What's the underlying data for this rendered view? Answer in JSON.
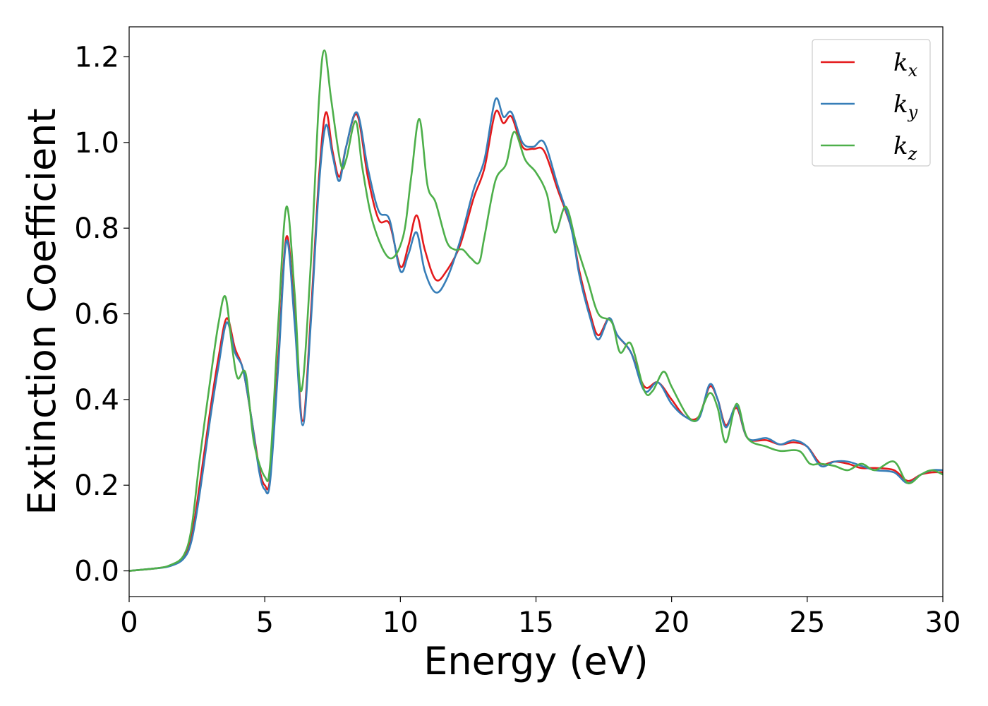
{
  "chart_data": {
    "type": "line",
    "title": "",
    "xlabel": "Energy (eV)",
    "ylabel": "Extinction Coefficient",
    "xlim": [
      0,
      30
    ],
    "ylim": [
      -0.06,
      1.27
    ],
    "xticks": [
      0,
      5,
      10,
      15,
      20,
      25,
      30
    ],
    "yticks": [
      0.0,
      0.2,
      0.4,
      0.6,
      0.8,
      1.0,
      1.2
    ],
    "xtick_labels": [
      "0",
      "5",
      "10",
      "15",
      "20",
      "25",
      "30"
    ],
    "ytick_labels": [
      "0.0",
      "0.2",
      "0.4",
      "0.6",
      "0.8",
      "1.0",
      "1.2"
    ],
    "grid": false,
    "legend_position": "top-right",
    "series": [
      {
        "name": "k_x",
        "label_base": "k",
        "label_sub": "x",
        "color": "#e41a1c",
        "points": [
          [
            0,
            0.0
          ],
          [
            1,
            0.006
          ],
          [
            1.5,
            0.012
          ],
          [
            2.0,
            0.03
          ],
          [
            2.3,
            0.08
          ],
          [
            2.6,
            0.2
          ],
          [
            3.0,
            0.38
          ],
          [
            3.3,
            0.5
          ],
          [
            3.6,
            0.59
          ],
          [
            3.9,
            0.52
          ],
          [
            4.2,
            0.47
          ],
          [
            4.5,
            0.36
          ],
          [
            4.8,
            0.24
          ],
          [
            5.0,
            0.2
          ],
          [
            5.2,
            0.22
          ],
          [
            5.5,
            0.5
          ],
          [
            5.8,
            0.78
          ],
          [
            6.1,
            0.6
          ],
          [
            6.4,
            0.35
          ],
          [
            6.7,
            0.6
          ],
          [
            7.0,
            0.92
          ],
          [
            7.25,
            1.07
          ],
          [
            7.5,
            0.98
          ],
          [
            7.75,
            0.92
          ],
          [
            8.0,
            0.99
          ],
          [
            8.4,
            1.065
          ],
          [
            8.8,
            0.92
          ],
          [
            9.2,
            0.82
          ],
          [
            9.6,
            0.81
          ],
          [
            10.0,
            0.71
          ],
          [
            10.3,
            0.76
          ],
          [
            10.6,
            0.83
          ],
          [
            10.9,
            0.75
          ],
          [
            11.3,
            0.68
          ],
          [
            11.7,
            0.7
          ],
          [
            12.2,
            0.76
          ],
          [
            12.7,
            0.87
          ],
          [
            13.1,
            0.94
          ],
          [
            13.5,
            1.07
          ],
          [
            13.8,
            1.045
          ],
          [
            14.1,
            1.06
          ],
          [
            14.5,
            0.99
          ],
          [
            14.9,
            0.985
          ],
          [
            15.3,
            0.98
          ],
          [
            15.8,
            0.89
          ],
          [
            16.3,
            0.8
          ],
          [
            16.6,
            0.7
          ],
          [
            17.0,
            0.6
          ],
          [
            17.3,
            0.55
          ],
          [
            17.7,
            0.59
          ],
          [
            18.0,
            0.55
          ],
          [
            18.5,
            0.51
          ],
          [
            19.0,
            0.43
          ],
          [
            19.5,
            0.44
          ],
          [
            20.0,
            0.4
          ],
          [
            20.5,
            0.36
          ],
          [
            21.0,
            0.36
          ],
          [
            21.4,
            0.43
          ],
          [
            21.7,
            0.4
          ],
          [
            22.0,
            0.34
          ],
          [
            22.4,
            0.38
          ],
          [
            22.8,
            0.31
          ],
          [
            23.5,
            0.305
          ],
          [
            24.0,
            0.295
          ],
          [
            24.5,
            0.3
          ],
          [
            25.0,
            0.29
          ],
          [
            25.5,
            0.25
          ],
          [
            26.0,
            0.255
          ],
          [
            26.5,
            0.25
          ],
          [
            27.0,
            0.24
          ],
          [
            27.5,
            0.24
          ],
          [
            28.2,
            0.235
          ],
          [
            28.7,
            0.21
          ],
          [
            29.2,
            0.225
          ],
          [
            29.6,
            0.23
          ],
          [
            30.0,
            0.23
          ]
        ]
      },
      {
        "name": "k_y",
        "label_base": "k",
        "label_sub": "y",
        "color": "#377eb8",
        "points": [
          [
            0,
            0.0
          ],
          [
            1,
            0.006
          ],
          [
            1.5,
            0.011
          ],
          [
            2.0,
            0.028
          ],
          [
            2.3,
            0.07
          ],
          [
            2.6,
            0.18
          ],
          [
            3.0,
            0.36
          ],
          [
            3.3,
            0.48
          ],
          [
            3.6,
            0.58
          ],
          [
            3.9,
            0.51
          ],
          [
            4.2,
            0.47
          ],
          [
            4.5,
            0.36
          ],
          [
            4.8,
            0.23
          ],
          [
            5.0,
            0.19
          ],
          [
            5.2,
            0.21
          ],
          [
            5.5,
            0.48
          ],
          [
            5.8,
            0.77
          ],
          [
            6.1,
            0.58
          ],
          [
            6.4,
            0.34
          ],
          [
            6.7,
            0.58
          ],
          [
            7.0,
            0.9
          ],
          [
            7.25,
            1.04
          ],
          [
            7.5,
            0.97
          ],
          [
            7.75,
            0.91
          ],
          [
            8.0,
            0.99
          ],
          [
            8.4,
            1.07
          ],
          [
            8.8,
            0.94
          ],
          [
            9.2,
            0.84
          ],
          [
            9.6,
            0.82
          ],
          [
            10.0,
            0.7
          ],
          [
            10.3,
            0.74
          ],
          [
            10.6,
            0.79
          ],
          [
            10.9,
            0.7
          ],
          [
            11.3,
            0.65
          ],
          [
            11.7,
            0.68
          ],
          [
            12.2,
            0.77
          ],
          [
            12.7,
            0.89
          ],
          [
            13.1,
            0.96
          ],
          [
            13.5,
            1.1
          ],
          [
            13.8,
            1.06
          ],
          [
            14.1,
            1.07
          ],
          [
            14.5,
            1.0
          ],
          [
            14.9,
            0.99
          ],
          [
            15.3,
            1.0
          ],
          [
            15.8,
            0.9
          ],
          [
            16.3,
            0.8
          ],
          [
            16.6,
            0.69
          ],
          [
            17.0,
            0.59
          ],
          [
            17.3,
            0.54
          ],
          [
            17.7,
            0.59
          ],
          [
            18.0,
            0.55
          ],
          [
            18.5,
            0.51
          ],
          [
            19.0,
            0.42
          ],
          [
            19.5,
            0.44
          ],
          [
            20.0,
            0.39
          ],
          [
            20.5,
            0.36
          ],
          [
            21.0,
            0.355
          ],
          [
            21.4,
            0.435
          ],
          [
            21.7,
            0.4
          ],
          [
            22.0,
            0.335
          ],
          [
            22.4,
            0.385
          ],
          [
            22.8,
            0.31
          ],
          [
            23.5,
            0.31
          ],
          [
            24.0,
            0.295
          ],
          [
            24.5,
            0.305
          ],
          [
            25.0,
            0.29
          ],
          [
            25.5,
            0.245
          ],
          [
            26.0,
            0.255
          ],
          [
            26.5,
            0.255
          ],
          [
            27.0,
            0.245
          ],
          [
            27.5,
            0.235
          ],
          [
            28.2,
            0.23
          ],
          [
            28.7,
            0.205
          ],
          [
            29.2,
            0.225
          ],
          [
            29.6,
            0.235
          ],
          [
            30.0,
            0.235
          ]
        ]
      },
      {
        "name": "k_z",
        "label_base": "k",
        "label_sub": "z",
        "color": "#4daf4a",
        "points": [
          [
            0,
            0.0
          ],
          [
            1,
            0.006
          ],
          [
            1.5,
            0.013
          ],
          [
            2.0,
            0.035
          ],
          [
            2.3,
            0.1
          ],
          [
            2.6,
            0.26
          ],
          [
            3.0,
            0.45
          ],
          [
            3.3,
            0.58
          ],
          [
            3.55,
            0.64
          ],
          [
            3.8,
            0.52
          ],
          [
            4.0,
            0.45
          ],
          [
            4.3,
            0.46
          ],
          [
            4.6,
            0.3
          ],
          [
            5.0,
            0.22
          ],
          [
            5.2,
            0.25
          ],
          [
            5.5,
            0.58
          ],
          [
            5.8,
            0.85
          ],
          [
            6.1,
            0.65
          ],
          [
            6.35,
            0.42
          ],
          [
            6.7,
            0.72
          ],
          [
            7.0,
            1.1
          ],
          [
            7.2,
            1.215
          ],
          [
            7.45,
            1.1
          ],
          [
            7.8,
            0.95
          ],
          [
            8.0,
            0.96
          ],
          [
            8.35,
            1.05
          ],
          [
            8.6,
            0.94
          ],
          [
            9.0,
            0.81
          ],
          [
            9.6,
            0.73
          ],
          [
            10.1,
            0.78
          ],
          [
            10.4,
            0.92
          ],
          [
            10.7,
            1.055
          ],
          [
            11.0,
            0.9
          ],
          [
            11.3,
            0.86
          ],
          [
            11.7,
            0.77
          ],
          [
            12.0,
            0.75
          ],
          [
            12.3,
            0.75
          ],
          [
            12.6,
            0.73
          ],
          [
            12.9,
            0.72
          ],
          [
            13.1,
            0.78
          ],
          [
            13.5,
            0.91
          ],
          [
            13.9,
            0.95
          ],
          [
            14.2,
            1.025
          ],
          [
            14.6,
            0.96
          ],
          [
            15.0,
            0.93
          ],
          [
            15.4,
            0.88
          ],
          [
            15.7,
            0.79
          ],
          [
            16.1,
            0.85
          ],
          [
            16.5,
            0.76
          ],
          [
            16.9,
            0.68
          ],
          [
            17.3,
            0.6
          ],
          [
            17.8,
            0.58
          ],
          [
            18.1,
            0.51
          ],
          [
            18.5,
            0.53
          ],
          [
            19.0,
            0.42
          ],
          [
            19.3,
            0.42
          ],
          [
            19.7,
            0.465
          ],
          [
            20.0,
            0.43
          ],
          [
            20.5,
            0.37
          ],
          [
            20.8,
            0.35
          ],
          [
            21.0,
            0.36
          ],
          [
            21.4,
            0.415
          ],
          [
            21.7,
            0.38
          ],
          [
            22.0,
            0.3
          ],
          [
            22.4,
            0.39
          ],
          [
            22.8,
            0.31
          ],
          [
            23.5,
            0.29
          ],
          [
            24.0,
            0.28
          ],
          [
            24.7,
            0.28
          ],
          [
            25.1,
            0.25
          ],
          [
            25.5,
            0.25
          ],
          [
            26.0,
            0.245
          ],
          [
            26.5,
            0.235
          ],
          [
            27.0,
            0.25
          ],
          [
            27.5,
            0.235
          ],
          [
            28.2,
            0.255
          ],
          [
            28.7,
            0.205
          ],
          [
            29.2,
            0.225
          ],
          [
            29.6,
            0.235
          ],
          [
            30.0,
            0.225
          ]
        ]
      }
    ]
  }
}
